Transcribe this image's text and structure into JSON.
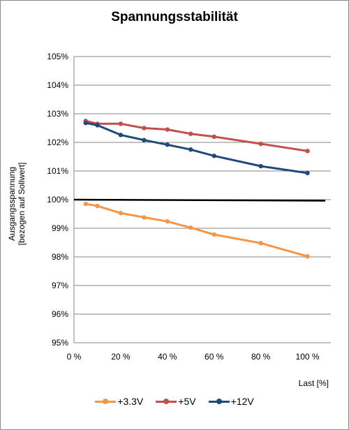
{
  "chart_data": {
    "type": "line",
    "title": "Spannungsstabilität",
    "ylabel_line1": "Ausgangsspannung",
    "ylabel_line2": "[bezogen auf Sollwert]",
    "xlabel": "Last [%]",
    "xlim": [
      0,
      110
    ],
    "ylim": [
      95,
      105
    ],
    "x_ticks": [
      0,
      20,
      40,
      60,
      80,
      100
    ],
    "x_tick_labels": [
      "0 %",
      "20 %",
      "40 %",
      "60 %",
      "80 %",
      "100 %"
    ],
    "y_ticks": [
      95,
      96,
      97,
      98,
      99,
      100,
      101,
      102,
      103,
      104,
      105
    ],
    "y_tick_labels": [
      "95%",
      "96%",
      "97%",
      "98%",
      "99%",
      "100%",
      "101%",
      "102%",
      "103%",
      "104%",
      "105%"
    ],
    "grid": "horizontal",
    "legend_position": "bottom",
    "reference_line": {
      "y": 100,
      "color": "#000000"
    },
    "series": [
      {
        "name": "+3.3V",
        "color": "#f79646",
        "x": [
          5,
          10,
          20,
          30,
          40,
          50,
          60,
          80,
          100
        ],
        "y": [
          99.85,
          99.78,
          99.53,
          99.38,
          99.24,
          99.02,
          98.78,
          98.48,
          98.02
        ]
      },
      {
        "name": "+5V",
        "color": "#c0504d",
        "x": [
          5,
          10,
          20,
          30,
          40,
          50,
          60,
          80,
          100
        ],
        "y": [
          102.75,
          102.65,
          102.65,
          102.5,
          102.45,
          102.3,
          102.2,
          101.95,
          101.7
        ]
      },
      {
        "name": "+12V",
        "color": "#1f497d",
        "x": [
          5,
          10,
          20,
          30,
          40,
          50,
          60,
          80,
          100
        ],
        "y": [
          102.68,
          102.6,
          102.26,
          102.08,
          101.92,
          101.75,
          101.53,
          101.17,
          100.93
        ]
      }
    ]
  }
}
